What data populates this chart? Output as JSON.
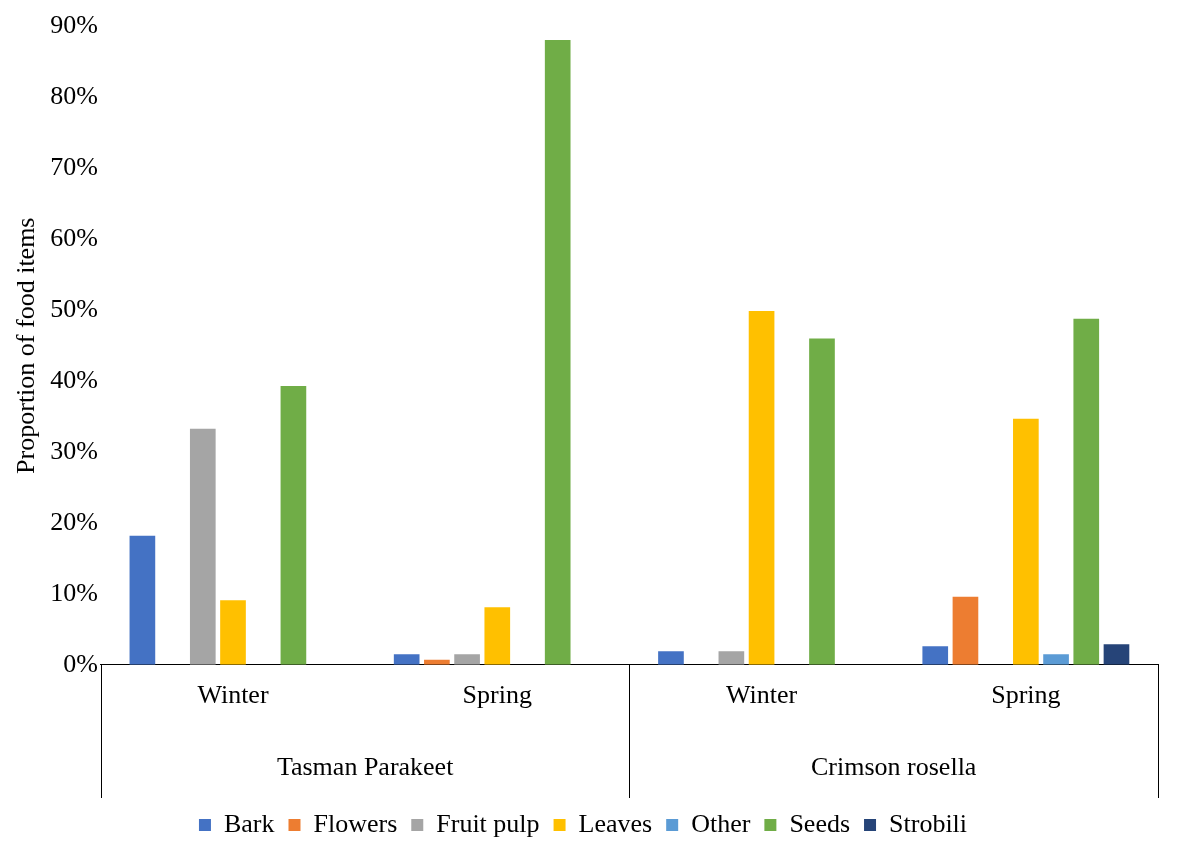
{
  "chart_data": {
    "type": "bar",
    "ylabel": "Proportion of food items",
    "categories": [
      "Winter",
      "Spring",
      "Winter",
      "Spring"
    ],
    "annotations": [
      "Tasman Parakeet",
      "Crimson rosella"
    ],
    "series": [
      {
        "name": "Bark",
        "color": "#4472c4",
        "values": [
          18.2,
          1.5,
          1.9,
          2.6
        ]
      },
      {
        "name": "Flowers",
        "color": "#ed7d31",
        "values": [
          0,
          0.7,
          0,
          9.6
        ]
      },
      {
        "name": "Fruit pulp",
        "color": "#a5a5a5",
        "values": [
          33.3,
          1.5,
          1.9,
          0
        ]
      },
      {
        "name": "Leaves",
        "color": "#ffc000",
        "values": [
          9.1,
          8.1,
          49.9,
          34.7
        ]
      },
      {
        "name": "Other",
        "color": "#5b9bd5",
        "values": [
          0,
          0,
          0,
          1.5
        ]
      },
      {
        "name": "Seeds",
        "color": "#70ad47",
        "values": [
          39.3,
          88.1,
          46.0,
          48.8
        ]
      },
      {
        "name": "Strobili",
        "color": "#264478",
        "values": [
          0,
          0,
          0,
          2.9
        ]
      }
    ],
    "ylim": [
      0,
      90
    ],
    "yticks": [
      {
        "value": 0,
        "label": "0%"
      },
      {
        "value": 10,
        "label": "10%"
      },
      {
        "value": 20,
        "label": "20%"
      },
      {
        "value": 30,
        "label": "30%"
      },
      {
        "value": 40,
        "label": "40%"
      },
      {
        "value": 50,
        "label": "50%"
      },
      {
        "value": 60,
        "label": "60%"
      },
      {
        "value": 70,
        "label": "70%"
      },
      {
        "value": 80,
        "label": "80%"
      },
      {
        "value": 90,
        "label": "90%"
      }
    ],
    "grid": false,
    "legend": "bottom"
  }
}
